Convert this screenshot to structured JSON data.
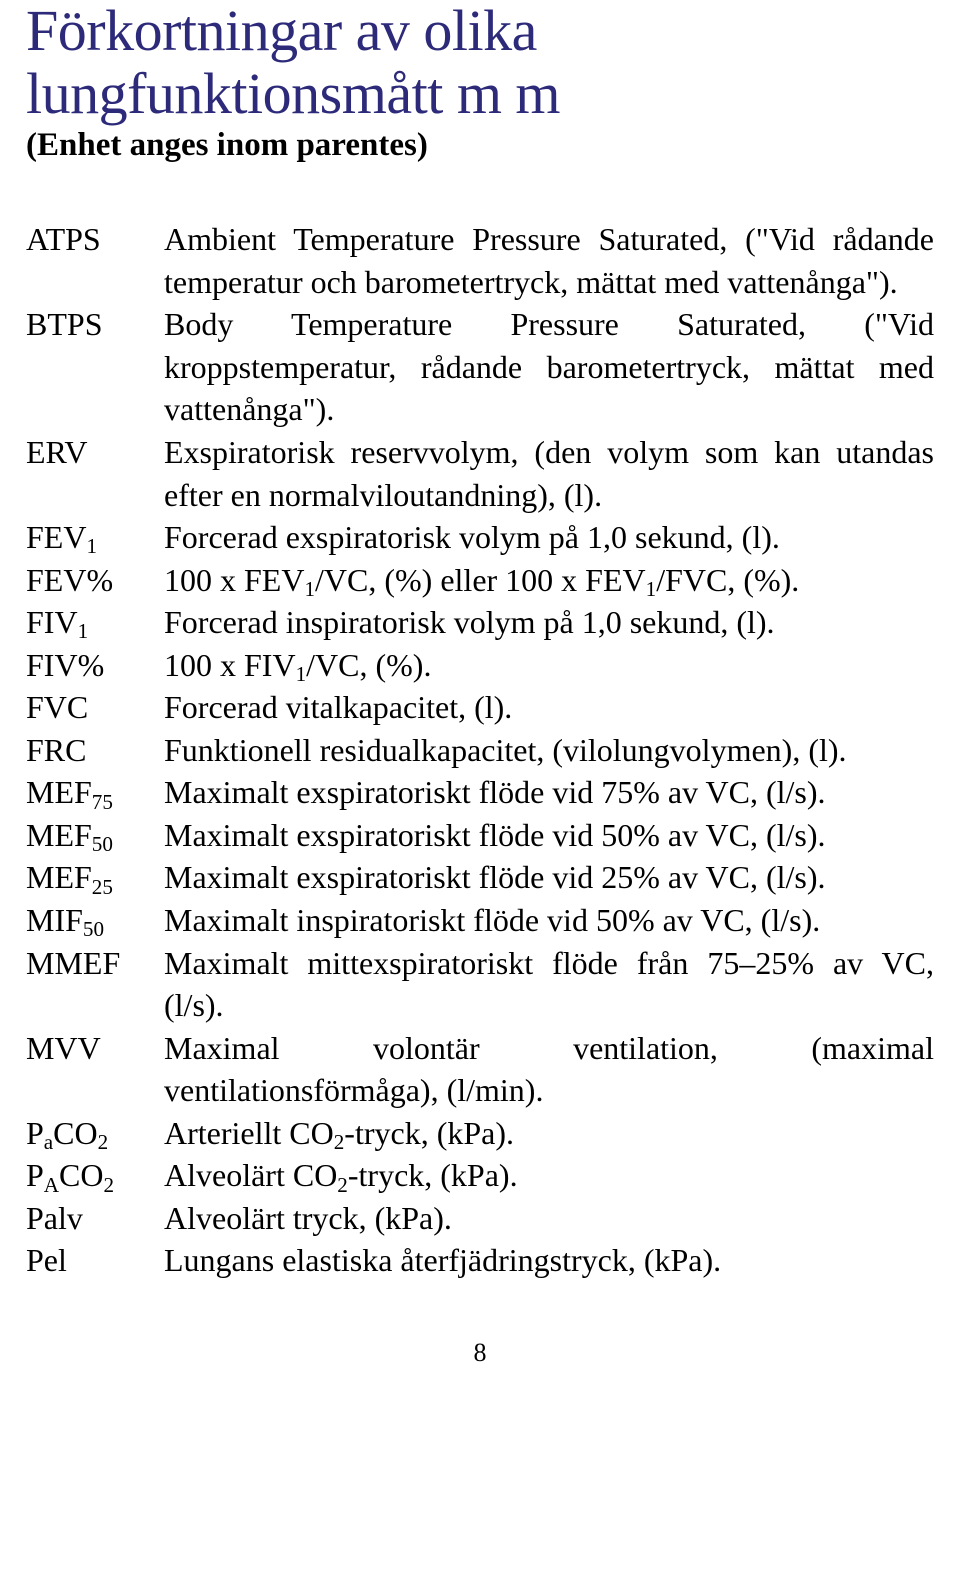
{
  "title": "Förkortningar av olika lungfunktionsmått m m",
  "subtitle": "(Enhet anges inom parentes)",
  "page_number": "8",
  "colors": {
    "title": "#2d2a7a",
    "text": "#000000",
    "background": "#ffffff"
  },
  "definitions": [
    {
      "term_html": "ATPS",
      "desc_html": "Ambient Temperature Pressure Saturated, (\"Vid rådande temperatur och barometertryck, mättat med vattenånga\")."
    },
    {
      "term_html": "BTPS",
      "desc_html": "Body Temperature Pressure Saturated, (\"Vid kroppstemperatur, rådande barometertryck, mättat med vattenånga\")."
    },
    {
      "term_html": "ERV",
      "desc_html": "Exspiratorisk reservvolym, (den volym som kan utandas efter en normalviloutandning), (l)."
    },
    {
      "term_html": "FEV<sub>1</sub>",
      "desc_html": "Forcerad exspiratorisk volym på 1,0 sekund, (l)."
    },
    {
      "term_html": "FEV%",
      "desc_html": "100 x FEV<sub>1</sub>/VC, (%) eller 100 x FEV<sub>1</sub>/FVC, (%)."
    },
    {
      "term_html": "FIV<sub>1</sub>",
      "desc_html": "Forcerad inspiratorisk volym på 1,0 sekund, (l)."
    },
    {
      "term_html": "FIV%",
      "desc_html": "100 x FIV<sub>1</sub>/VC, (%)."
    },
    {
      "term_html": "FVC",
      "desc_html": "Forcerad vitalkapacitet, (l)."
    },
    {
      "term_html": "FRC",
      "desc_html": "Funktionell residualkapacitet, (vilolungvolymen), (l)."
    },
    {
      "term_html": "MEF<sub>75</sub>",
      "desc_html": "Maximalt exspiratoriskt flöde vid 75% av VC, (l/s)."
    },
    {
      "term_html": "MEF<sub>50</sub>",
      "desc_html": "Maximalt exspiratoriskt flöde vid 50% av VC, (l/s)."
    },
    {
      "term_html": "MEF<sub>25</sub>",
      "desc_html": "Maximalt exspiratoriskt flöde vid 25% av VC, (l/s)."
    },
    {
      "term_html": "MIF<sub>50</sub>",
      "desc_html": "Maximalt inspiratoriskt flöde vid 50% av VC, (l/s)."
    },
    {
      "term_html": "MMEF",
      "desc_html": "Maximalt mittexspiratoriskt flöde från 75–25% av VC, (l/s)."
    },
    {
      "term_html": "MVV",
      "desc_html": "Maximal volontär ventilation, (maximal ventilationsförmåga), (l/min)."
    },
    {
      "term_html": "P<sub>a</sub>CO<sub>2</sub>",
      "desc_html": "Arteriellt CO<sub>2</sub>-tryck, (kPa)."
    },
    {
      "term_html": "P<sub>A</sub>CO<sub>2</sub>",
      "desc_html": "Alveolärt CO<sub>2</sub>-tryck, (kPa)."
    },
    {
      "term_html": "Palv",
      "desc_html": "Alveolärt tryck, (kPa)."
    },
    {
      "term_html": "Pel",
      "desc_html": "Lungans elastiska återfjädringstryck, (kPa)."
    }
  ]
}
